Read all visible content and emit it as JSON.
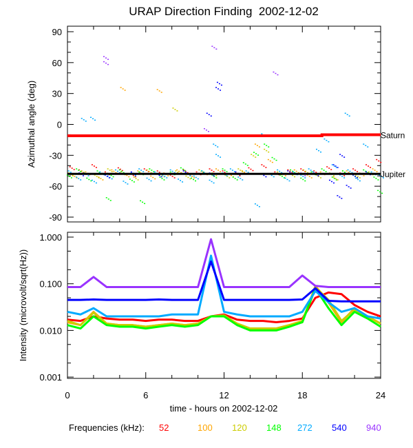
{
  "chart_data": [
    {
      "type": "scatter",
      "title": "URAP Direction Finding  2002-12-02",
      "xlabel": "",
      "ylabel": "Azimuthal angle (deg)",
      "xlim": [
        0,
        24
      ],
      "ylim": [
        -90,
        90
      ],
      "yticks": [
        "90",
        "60",
        "30",
        "0",
        "-30",
        "-60",
        "-90"
      ],
      "reference_lines": [
        {
          "name": "Saturn",
          "color": "#ff0000",
          "points": [
            [
              0,
              -11
            ],
            [
              19.5,
              -11
            ],
            [
              19.5,
              -10
            ],
            [
              24,
              -10
            ]
          ]
        },
        {
          "name": "Jupiter",
          "color": "#000000",
          "points": [
            [
              0,
              -48
            ],
            [
              24,
              -48
            ]
          ]
        }
      ],
      "series": [
        {
          "name": "52",
          "color": "#ff0000",
          "points": [
            [
              0.3,
              -42
            ],
            [
              1,
              -45
            ],
            [
              2,
              -40
            ],
            [
              3,
              -47
            ],
            [
              4,
              -43
            ],
            [
              5,
              -49
            ],
            [
              6,
              -44
            ],
            [
              7,
              -46
            ],
            [
              8,
              -50
            ],
            [
              9,
              -45
            ],
            [
              10,
              -47
            ],
            [
              11,
              -44
            ],
            [
              12,
              -46
            ],
            [
              13,
              -48
            ],
            [
              14,
              -43
            ],
            [
              15,
              -40
            ],
            [
              16,
              -47
            ],
            [
              17,
              -45
            ],
            [
              18,
              -44
            ],
            [
              19,
              -46
            ],
            [
              20,
              -42
            ],
            [
              21,
              -48
            ],
            [
              22,
              -44
            ],
            [
              23,
              -40
            ],
            [
              23.8,
              -35
            ]
          ]
        },
        {
          "name": "100",
          "color": "#ffa500",
          "points": [
            [
              0.5,
              -50
            ],
            [
              1.5,
              -47
            ],
            [
              2.5,
              -52
            ],
            [
              3.5,
              -45
            ],
            [
              4.2,
              35
            ],
            [
              4.5,
              -49
            ],
            [
              5.5,
              -46
            ],
            [
              6.5,
              -51
            ],
            [
              7,
              33
            ],
            [
              7.5,
              -48
            ],
            [
              8.5,
              -45
            ],
            [
              9.5,
              -50
            ],
            [
              10.5,
              -47
            ],
            [
              11.5,
              -44
            ],
            [
              12.5,
              -49
            ],
            [
              13.5,
              -46
            ],
            [
              14.5,
              -20
            ],
            [
              15.5,
              -35
            ],
            [
              16.5,
              -48
            ],
            [
              17.5,
              -45
            ],
            [
              18.5,
              -50
            ],
            [
              19.5,
              -47
            ],
            [
              20.5,
              -52
            ],
            [
              21.5,
              -46
            ],
            [
              22.5,
              -48
            ],
            [
              23.5,
              -44
            ]
          ]
        },
        {
          "name": "120",
          "color": "#cccc00",
          "points": [
            [
              0.2,
              -48
            ],
            [
              1.2,
              -46
            ],
            [
              2.2,
              -50
            ],
            [
              3.2,
              -44
            ],
            [
              4.2,
              -47
            ],
            [
              5.2,
              -52
            ],
            [
              6.2,
              -45
            ],
            [
              7.2,
              -49
            ],
            [
              8.2,
              15
            ],
            [
              8.4,
              -46
            ],
            [
              9.2,
              -51
            ],
            [
              10.2,
              -45
            ],
            [
              11.2,
              -48
            ],
            [
              12.2,
              -50
            ],
            [
              13.2,
              -44
            ],
            [
              14.2,
              -30
            ],
            [
              15.2,
              -25
            ],
            [
              16.2,
              -47
            ],
            [
              17.2,
              -49
            ],
            [
              18.2,
              -45
            ],
            [
              19.2,
              -50
            ],
            [
              20.2,
              -48
            ],
            [
              21.2,
              -46
            ],
            [
              22.2,
              -50
            ],
            [
              23.2,
              -47
            ]
          ]
        },
        {
          "name": "148",
          "color": "#00ff00",
          "points": [
            [
              0.1,
              -50
            ],
            [
              0.8,
              -44
            ],
            [
              1.6,
              -53
            ],
            [
              2.4,
              -46
            ],
            [
              3.1,
              -72
            ],
            [
              3.3,
              -49
            ],
            [
              4.1,
              -45
            ],
            [
              4.9,
              -54
            ],
            [
              5.6,
              -47
            ],
            [
              5.7,
              -75
            ],
            [
              6.4,
              -44
            ],
            [
              7.2,
              -52
            ],
            [
              8.0,
              -47
            ],
            [
              8.8,
              -43
            ],
            [
              9.6,
              -53
            ],
            [
              10.4,
              -46
            ],
            [
              11.2,
              -50
            ],
            [
              12.0,
              -44
            ],
            [
              12.8,
              -52
            ],
            [
              13.6,
              -38
            ],
            [
              14.4,
              -28
            ],
            [
              15.2,
              -20
            ],
            [
              15.8,
              -33
            ],
            [
              16.4,
              -50
            ],
            [
              17.2,
              -45
            ],
            [
              18.0,
              -53
            ],
            [
              18.8,
              -47
            ],
            [
              19.6,
              -44
            ],
            [
              20.4,
              -52
            ],
            [
              21.2,
              -46
            ],
            [
              22.0,
              -50
            ],
            [
              22.8,
              -45
            ],
            [
              23.6,
              -52
            ],
            [
              23.9,
              -65
            ]
          ]
        },
        {
          "name": "272",
          "color": "#00aaff",
          "points": [
            [
              0.2,
              -46
            ],
            [
              0.8,
              -52
            ],
            [
              1.2,
              5
            ],
            [
              1.4,
              -48
            ],
            [
              1.9,
              6
            ],
            [
              2.0,
              -55
            ],
            [
              2.6,
              -47
            ],
            [
              3.2,
              -51
            ],
            [
              3.8,
              -45
            ],
            [
              4.4,
              -56
            ],
            [
              5.0,
              -48
            ],
            [
              5.6,
              -44
            ],
            [
              6.2,
              -53
            ],
            [
              6.8,
              -47
            ],
            [
              7.4,
              -50
            ],
            [
              8.0,
              -45
            ],
            [
              8.6,
              -54
            ],
            [
              9.2,
              -48
            ],
            [
              9.8,
              -51
            ],
            [
              10.4,
              -46
            ],
            [
              11.0,
              -55
            ],
            [
              11.3,
              -20
            ],
            [
              11.5,
              -30
            ],
            [
              12.0,
              -48
            ],
            [
              12.6,
              -44
            ],
            [
              13.2,
              -52
            ],
            [
              13.8,
              -46
            ],
            [
              14.5,
              -78
            ],
            [
              15.0,
              -10
            ],
            [
              15.6,
              -49
            ],
            [
              16.2,
              -45
            ],
            [
              16.8,
              -53
            ],
            [
              17.4,
              -47
            ],
            [
              18.0,
              -50
            ],
            [
              18.6,
              -44
            ],
            [
              19.2,
              -25
            ],
            [
              19.8,
              -15
            ],
            [
              20.4,
              -40
            ],
            [
              21.0,
              -50
            ],
            [
              21.4,
              10
            ],
            [
              21.6,
              -45
            ],
            [
              22.2,
              -53
            ],
            [
              22.8,
              -20
            ],
            [
              23.4,
              -47
            ],
            [
              24.0,
              -50
            ]
          ]
        },
        {
          "name": "540",
          "color": "#0000ff",
          "points": [
            [
              1.0,
              -48
            ],
            [
              3.0,
              -50
            ],
            [
              5.0,
              -47
            ],
            [
              7.0,
              -49
            ],
            [
              9.0,
              -46
            ],
            [
              10.8,
              10
            ],
            [
              11.0,
              -48
            ],
            [
              11.5,
              35
            ],
            [
              11.6,
              40
            ],
            [
              13.0,
              -47
            ],
            [
              15.0,
              -49
            ],
            [
              17.0,
              -46
            ],
            [
              19.0,
              -48
            ],
            [
              20.2,
              -55
            ],
            [
              20.5,
              -40
            ],
            [
              20.8,
              -70
            ],
            [
              21.0,
              -30
            ],
            [
              21.5,
              -60
            ],
            [
              22.0,
              -50
            ],
            [
              23.0,
              -47
            ]
          ]
        },
        {
          "name": "940",
          "color": "#9933ff",
          "points": [
            [
              2.9,
              65
            ],
            [
              2.9,
              60
            ],
            [
              10.6,
              -5
            ],
            [
              11.2,
              75
            ],
            [
              15.9,
              50
            ],
            [
              18.0,
              -48
            ]
          ]
        }
      ]
    },
    {
      "type": "line",
      "xlabel": "time - hours on 2002-12-02",
      "ylabel": "Intensity (microvolt/sqrt(Hz))",
      "yscale": "log",
      "xlim": [
        0,
        24
      ],
      "ylim": [
        0.001,
        1.0
      ],
      "xticks": [
        "0",
        "6",
        "12",
        "18",
        "24"
      ],
      "yticks": [
        "1.000",
        "0.100",
        "0.010",
        "0.001"
      ],
      "x": [
        0,
        1,
        2,
        3,
        4,
        5,
        6,
        7,
        8,
        9,
        10,
        11,
        12,
        13,
        14,
        15,
        16,
        17,
        18,
        19,
        20,
        21,
        22,
        23,
        24
      ],
      "series": [
        {
          "name": "52",
          "color": "#ff0000",
          "values": [
            0.017,
            0.016,
            0.02,
            0.018,
            0.017,
            0.017,
            0.016,
            0.017,
            0.017,
            0.016,
            0.016,
            0.02,
            0.022,
            0.017,
            0.016,
            0.016,
            0.015,
            0.016,
            0.018,
            0.05,
            0.065,
            0.06,
            0.035,
            0.025,
            0.02
          ]
        },
        {
          "name": "100",
          "color": "#ffa500",
          "values": [
            0.015,
            0.013,
            0.025,
            0.014,
            0.013,
            0.013,
            0.012,
            0.013,
            0.014,
            0.013,
            0.014,
            0.02,
            0.02,
            0.014,
            0.011,
            0.011,
            0.011,
            0.013,
            0.015,
            0.09,
            0.04,
            0.015,
            0.03,
            0.02,
            0.014
          ]
        },
        {
          "name": "120",
          "color": "#cccc00",
          "values": [
            0.016,
            0.013,
            0.024,
            0.014,
            0.013,
            0.013,
            0.012,
            0.013,
            0.014,
            0.013,
            0.014,
            0.02,
            0.021,
            0.014,
            0.011,
            0.011,
            0.011,
            0.013,
            0.016,
            0.085,
            0.045,
            0.016,
            0.028,
            0.02,
            0.014
          ]
        },
        {
          "name": "148",
          "color": "#00ff00",
          "values": [
            0.013,
            0.011,
            0.02,
            0.013,
            0.012,
            0.012,
            0.011,
            0.012,
            0.013,
            0.012,
            0.013,
            0.02,
            0.02,
            0.013,
            0.01,
            0.01,
            0.01,
            0.012,
            0.015,
            0.08,
            0.03,
            0.013,
            0.025,
            0.018,
            0.012
          ]
        },
        {
          "name": "272",
          "color": "#00aaff",
          "values": [
            0.025,
            0.022,
            0.03,
            0.02,
            0.02,
            0.02,
            0.02,
            0.02,
            0.022,
            0.022,
            0.022,
            0.4,
            0.025,
            0.022,
            0.02,
            0.02,
            0.02,
            0.02,
            0.025,
            0.07,
            0.04,
            0.025,
            0.03,
            0.02,
            0.018
          ]
        },
        {
          "name": "540",
          "color": "#0000ff",
          "values": [
            0.045,
            0.045,
            0.046,
            0.045,
            0.045,
            0.045,
            0.045,
            0.046,
            0.045,
            0.045,
            0.045,
            0.3,
            0.045,
            0.045,
            0.045,
            0.045,
            0.045,
            0.045,
            0.046,
            0.08,
            0.043,
            0.042,
            0.042,
            0.042,
            0.042
          ]
        },
        {
          "name": "940",
          "color": "#9933ff",
          "values": [
            0.085,
            0.085,
            0.14,
            0.085,
            0.085,
            0.085,
            0.085,
            0.085,
            0.085,
            0.085,
            0.085,
            0.9,
            0.085,
            0.085,
            0.085,
            0.085,
            0.085,
            0.085,
            0.15,
            0.09,
            0.085,
            0.085,
            0.085,
            0.085,
            0.085
          ]
        }
      ]
    }
  ],
  "legend": {
    "label": "Frequencies (kHz):",
    "items": [
      {
        "text": "52",
        "color": "#ff0000"
      },
      {
        "text": "100",
        "color": "#ffa500"
      },
      {
        "text": "120",
        "color": "#cccc00"
      },
      {
        "text": "148",
        "color": "#00ff00"
      },
      {
        "text": "272",
        "color": "#00aaff"
      },
      {
        "text": "540",
        "color": "#0000ff"
      },
      {
        "text": "940",
        "color": "#9933ff"
      }
    ]
  }
}
